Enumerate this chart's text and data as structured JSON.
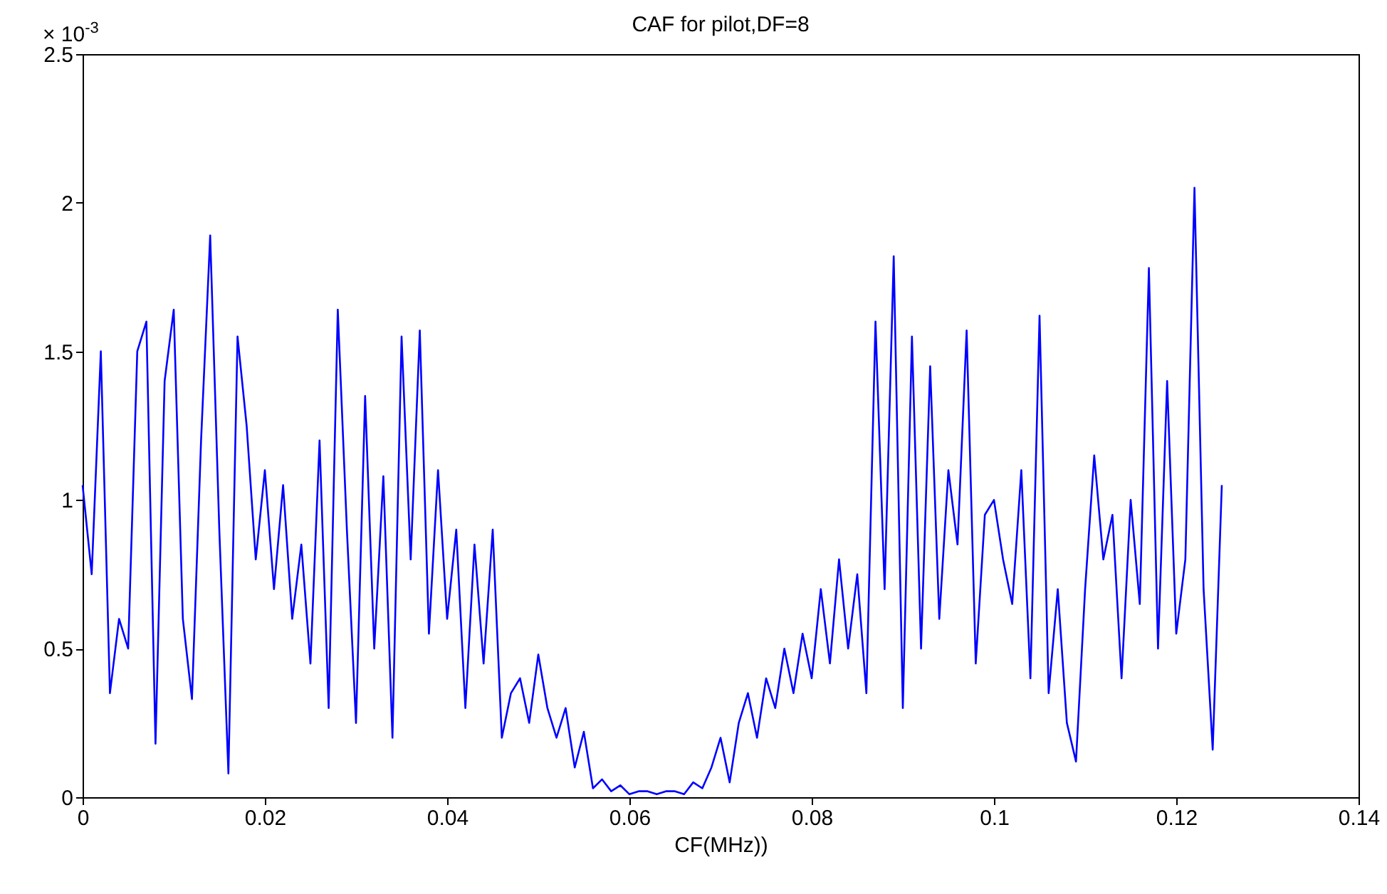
{
  "chart_data": {
    "type": "line",
    "title": "CAF for pilot,DF=8",
    "xlabel": "CF(MHz))",
    "annotations": [
      "× 10$^{-3}$"
    ],
    "x": [
      0,
      0.001,
      0.002,
      0.003,
      0.004,
      0.005,
      0.006,
      0.007,
      0.008,
      0.009,
      0.01,
      0.011,
      0.012,
      0.013,
      0.014,
      0.015,
      0.016,
      0.017,
      0.018,
      0.019,
      0.02,
      0.021,
      0.022,
      0.023,
      0.024,
      0.025,
      0.026,
      0.027,
      0.028,
      0.029,
      0.03,
      0.031,
      0.032,
      0.033,
      0.034,
      0.035,
      0.036,
      0.037,
      0.038,
      0.039,
      0.04,
      0.041,
      0.042,
      0.043,
      0.044,
      0.045,
      0.046,
      0.047,
      0.048,
      0.049,
      0.05,
      0.051,
      0.052,
      0.053,
      0.054,
      0.055,
      0.056,
      0.057,
      0.058,
      0.059,
      0.06,
      0.061,
      0.062,
      0.063,
      0.064,
      0.065,
      0.066,
      0.067,
      0.068,
      0.069,
      0.07,
      0.071,
      0.072,
      0.073,
      0.074,
      0.075,
      0.076,
      0.077,
      0.078,
      0.079,
      0.08,
      0.081,
      0.082,
      0.083,
      0.084,
      0.085,
      0.086,
      0.087,
      0.088,
      0.089,
      0.09,
      0.091,
      0.092,
      0.093,
      0.094,
      0.095,
      0.096,
      0.097,
      0.098,
      0.099,
      0.1,
      0.101,
      0.102,
      0.103,
      0.104,
      0.105,
      0.106,
      0.107,
      0.108,
      0.109,
      0.11,
      0.111,
      0.112,
      0.113,
      0.114,
      0.115,
      0.116,
      0.117,
      0.118,
      0.119,
      0.12,
      0.121,
      0.122,
      0.123,
      0.124,
      0.125
    ],
    "series": [
      {
        "color": "#0000ff",
        "values": [
          1.05,
          0.75,
          1.5,
          0.35,
          0.6,
          0.5,
          1.5,
          1.6,
          0.18,
          1.4,
          1.64,
          0.6,
          0.33,
          1.2,
          1.89,
          0.9,
          0.08,
          1.55,
          1.25,
          0.8,
          1.1,
          0.7,
          1.05,
          0.6,
          0.85,
          0.45,
          1.2,
          0.3,
          1.64,
          0.9,
          0.25,
          1.35,
          0.5,
          1.08,
          0.2,
          1.55,
          0.8,
          1.57,
          0.55,
          1.1,
          0.6,
          0.9,
          0.3,
          0.85,
          0.45,
          0.9,
          0.2,
          0.35,
          0.4,
          0.25,
          0.48,
          0.3,
          0.2,
          0.3,
          0.1,
          0.22,
          0.03,
          0.06,
          0.02,
          0.04,
          0.01,
          0.02,
          0.02,
          0.01,
          0.02,
          0.02,
          0.01,
          0.05,
          0.03,
          0.1,
          0.2,
          0.05,
          0.25,
          0.35,
          0.2,
          0.4,
          0.3,
          0.5,
          0.35,
          0.55,
          0.4,
          0.7,
          0.45,
          0.8,
          0.5,
          0.75,
          0.35,
          1.6,
          0.7,
          1.82,
          0.3,
          1.55,
          0.5,
          1.45,
          0.6,
          1.1,
          0.85,
          1.57,
          0.45,
          0.95,
          1.0,
          0.8,
          0.65,
          1.1,
          0.4,
          1.62,
          0.35,
          0.7,
          0.25,
          0.12,
          0.7,
          1.15,
          0.8,
          0.95,
          0.4,
          1.0,
          0.65,
          1.78,
          0.5,
          1.4,
          0.55,
          0.8,
          2.05,
          0.7,
          0.16,
          1.05
        ]
      }
    ],
    "xlim": [
      0,
      0.14
    ],
    "xticks": [
      0,
      0.02,
      0.04,
      0.06,
      0.08,
      0.1,
      0.12,
      0.14
    ],
    "ylim": [
      0,
      2.5
    ],
    "yticks": [
      0,
      0.5,
      1,
      1.5,
      2,
      2.5
    ],
    "grid": false
  }
}
